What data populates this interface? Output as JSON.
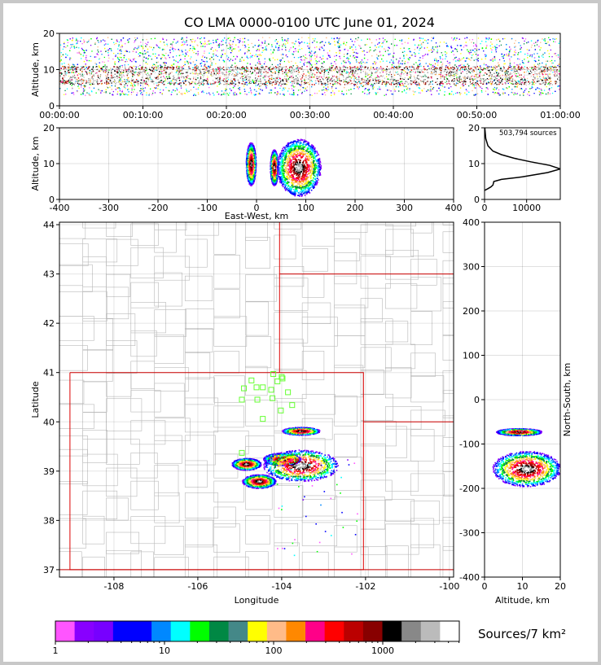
{
  "title": "CO LMA 0000-0100 UTC June 01, 2024",
  "chart_data": [
    {
      "id": "time-height",
      "type": "heatmap",
      "ylabel": "Altitude, km",
      "x_ticks": [
        "00:00:00",
        "00:10:00",
        "00:20:00",
        "00:30:00",
        "00:40:00",
        "00:50:00",
        "01:00:00"
      ],
      "y_ticks": [
        0,
        10,
        20
      ],
      "xlim": [
        "00:00:00",
        "01:00:00"
      ],
      "ylim": [
        0,
        20
      ],
      "grid": true,
      "band": {
        "bottom_km": 3,
        "top_km": 19,
        "core_bottom_km": 6,
        "core_top_km": 11
      }
    },
    {
      "id": "east-west-altitude",
      "type": "heatmap",
      "xlabel": "East-West, km",
      "ylabel": "Altitude, km",
      "x_ticks": [
        -400,
        -300,
        -200,
        -100,
        0,
        100,
        200,
        300,
        400
      ],
      "y_ticks": [
        0,
        10,
        20
      ],
      "xlim": [
        -400,
        400
      ],
      "ylim": [
        0,
        20
      ],
      "grid": true,
      "cells": [
        {
          "x_center": -12,
          "alt_center": 10,
          "x_half_width": 10,
          "alt_half_height": 6
        },
        {
          "x_center": 35,
          "alt_center": 9,
          "x_half_width": 8,
          "alt_half_height": 5
        },
        {
          "x_center": 85,
          "alt_center": 9,
          "x_half_width": 45,
          "alt_half_height": 8
        }
      ]
    },
    {
      "id": "altitude-histogram",
      "type": "line",
      "annotation": "503,794 sources",
      "x_ticks": [
        0,
        10000
      ],
      "y_ticks": [
        0,
        10,
        20
      ],
      "xlim": [
        0,
        18000
      ],
      "ylim": [
        0,
        20
      ],
      "grid": true,
      "series": [
        {
          "x": [
            0,
            800,
            1500,
            2000,
            2200,
            4000,
            9000,
            15000,
            18000,
            15500,
            11000,
            7000,
            4000,
            2000,
            800,
            300,
            50
          ],
          "y": [
            2.5,
            3.0,
            3.5,
            4.0,
            5.0,
            5.6,
            6.3,
            7.5,
            8.5,
            9.5,
            10.5,
            11.5,
            12.5,
            13.5,
            15.0,
            17.0,
            20.0
          ]
        }
      ]
    },
    {
      "id": "plan-view",
      "type": "heatmap",
      "xlabel": "Longitude",
      "ylabel": "Latitude",
      "x_ticks": [
        -108,
        -106,
        -104,
        -102,
        -100
      ],
      "y_ticks": [
        37,
        38,
        39,
        40,
        41,
        42,
        43,
        44
      ],
      "xlim": [
        -109.3,
        -99.9
      ],
      "ylim": [
        36.85,
        44.05
      ],
      "grid": true,
      "state_lines": [
        {
          "lon": [
            -109.05,
            -102.05,
            -102.05,
            -109.05,
            -109.05
          ],
          "lat": [
            41.0,
            41.0,
            37.0,
            37.0,
            41.0
          ]
        },
        {
          "lon": [
            -104.05,
            -104.05
          ],
          "lat": [
            41.0,
            44.05
          ]
        },
        {
          "lon": [
            -104.05,
            -99.9
          ],
          "lat": [
            43.0,
            43.0
          ]
        },
        {
          "lon": [
            -102.05,
            -99.9
          ],
          "lat": [
            40.0,
            40.0
          ]
        },
        {
          "lon": [
            -109.3,
            -99.9
          ],
          "lat": [
            37.0,
            37.0
          ]
        }
      ],
      "stations": [
        {
          "lon": -104.2,
          "lat": 40.97
        },
        {
          "lon": -103.98,
          "lat": 40.88
        },
        {
          "lon": -104.1,
          "lat": 40.82
        },
        {
          "lon": -104.0,
          "lat": 40.91
        },
        {
          "lon": -104.72,
          "lat": 40.84
        },
        {
          "lon": -104.45,
          "lat": 40.7
        },
        {
          "lon": -104.6,
          "lat": 40.7
        },
        {
          "lon": -104.9,
          "lat": 40.68
        },
        {
          "lon": -104.25,
          "lat": 40.65
        },
        {
          "lon": -103.85,
          "lat": 40.6
        },
        {
          "lon": -104.95,
          "lat": 40.45
        },
        {
          "lon": -104.58,
          "lat": 40.45
        },
        {
          "lon": -104.22,
          "lat": 40.48
        },
        {
          "lon": -103.75,
          "lat": 40.34
        },
        {
          "lon": -104.02,
          "lat": 40.23
        },
        {
          "lon": -104.45,
          "lat": 40.06
        },
        {
          "lon": -104.95,
          "lat": 39.37
        }
      ],
      "storm_cells": [
        {
          "lon": -103.55,
          "lat": 39.82,
          "rx": 0.45,
          "ry": 0.08
        },
        {
          "lon": -104.85,
          "lat": 39.15,
          "rx": 0.35,
          "ry": 0.12
        },
        {
          "lon": -104.0,
          "lat": 39.25,
          "rx": 0.45,
          "ry": 0.13
        },
        {
          "lon": -103.55,
          "lat": 39.12,
          "rx": 0.9,
          "ry": 0.32
        },
        {
          "lon": -104.55,
          "lat": 38.8,
          "rx": 0.4,
          "ry": 0.14
        }
      ]
    },
    {
      "id": "altitude-north-south",
      "type": "heatmap",
      "xlabel": "Altitude, km",
      "ylabel": "North-South, km",
      "x_ticks": [
        0,
        10,
        20
      ],
      "y_ticks": [
        -400,
        -300,
        -200,
        -100,
        0,
        100,
        200,
        300,
        400
      ],
      "xlim": [
        0,
        20
      ],
      "ylim": [
        -400,
        400
      ],
      "grid": true,
      "cells": [
        {
          "alt_center": 9,
          "ns_center": -72,
          "alt_half_width": 6,
          "ns_half_height": 8
        },
        {
          "alt_center": 11,
          "ns_center": -155,
          "alt_half_width": 9,
          "ns_half_height": 40
        }
      ]
    }
  ],
  "colorbar": {
    "label": "Sources/7 km²",
    "tick_labels": [
      "1",
      "10",
      "100",
      "1000"
    ],
    "colors": [
      "#ff55ff",
      "#8800ff",
      "#7700ff",
      "#0000ff",
      "#0000ff",
      "#0088ff",
      "#00ffff",
      "#00ff00",
      "#008844",
      "#448888",
      "#ffff00",
      "#ffbb88",
      "#ff8800",
      "#ff0088",
      "#ff0000",
      "#bb0000",
      "#880000",
      "#000000",
      "#888888",
      "#bbbbbb",
      "#ffffff"
    ]
  }
}
